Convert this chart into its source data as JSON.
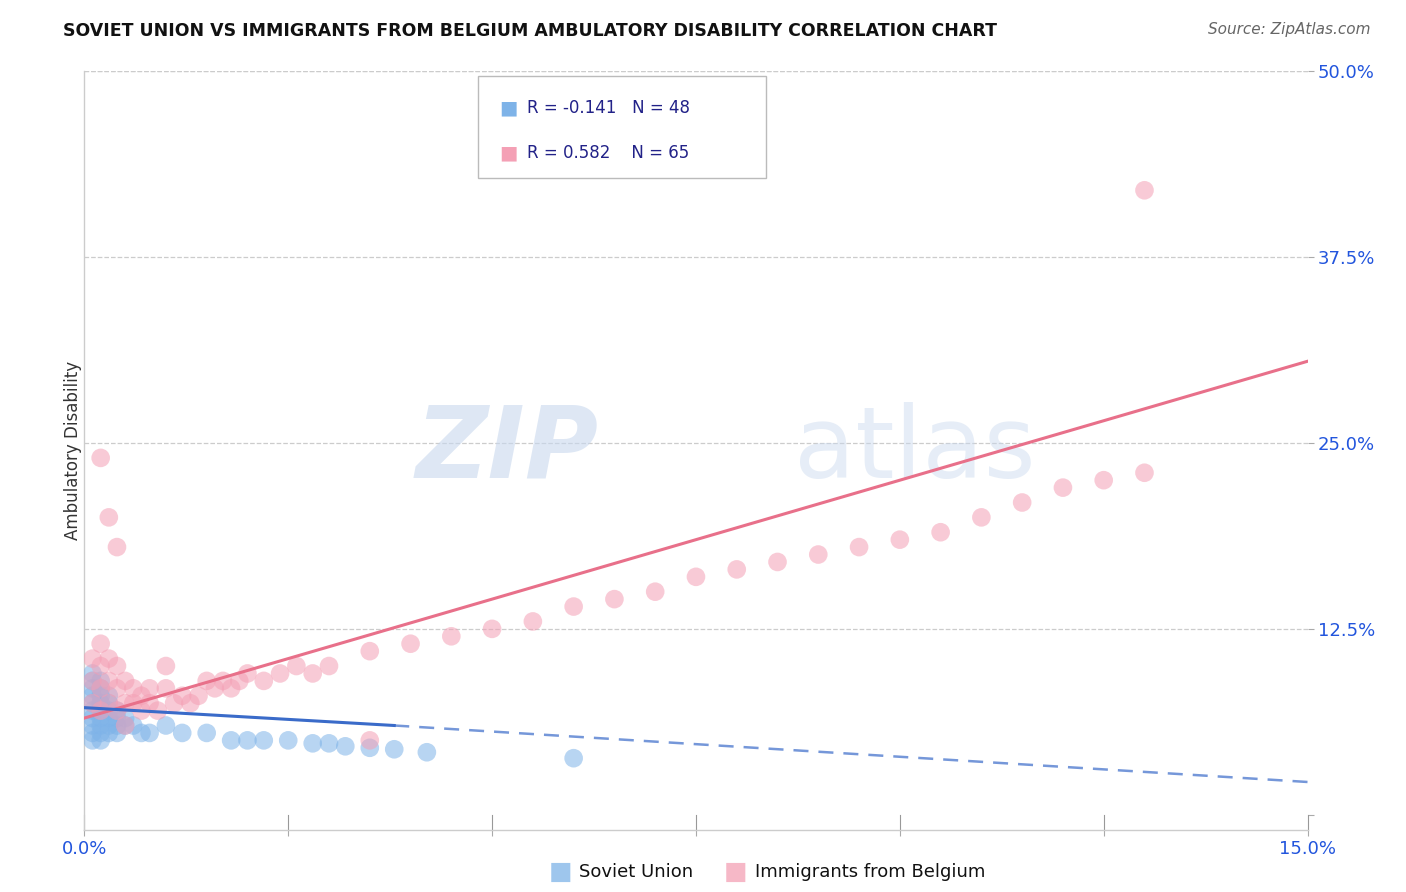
{
  "title": "SOVIET UNION VS IMMIGRANTS FROM BELGIUM AMBULATORY DISABILITY CORRELATION CHART",
  "source": "Source: ZipAtlas.com",
  "ylabel": "Ambulatory Disability",
  "xlim": [
    0.0,
    0.15
  ],
  "ylim": [
    -0.01,
    0.5
  ],
  "xticks": [
    0.0,
    0.025,
    0.05,
    0.075,
    0.1,
    0.125,
    0.15
  ],
  "yticks": [
    0.0,
    0.125,
    0.25,
    0.375,
    0.5
  ],
  "blue_color": "#7eb3e8",
  "pink_color": "#f4a0b5",
  "blue_line_color": "#3a6bc9",
  "pink_line_color": "#e8708a",
  "soviet_x": [
    0.001,
    0.001,
    0.001,
    0.001,
    0.001,
    0.001,
    0.001,
    0.001,
    0.001,
    0.001,
    0.002,
    0.002,
    0.002,
    0.002,
    0.002,
    0.002,
    0.002,
    0.002,
    0.002,
    0.003,
    0.003,
    0.003,
    0.003,
    0.003,
    0.003,
    0.004,
    0.004,
    0.004,
    0.004,
    0.005,
    0.005,
    0.006,
    0.007,
    0.008,
    0.01,
    0.012,
    0.015,
    0.018,
    0.02,
    0.022,
    0.025,
    0.028,
    0.03,
    0.032,
    0.035,
    0.038,
    0.042,
    0.06
  ],
  "soviet_y": [
    0.065,
    0.07,
    0.075,
    0.08,
    0.085,
    0.055,
    0.06,
    0.09,
    0.095,
    0.05,
    0.065,
    0.07,
    0.075,
    0.08,
    0.06,
    0.055,
    0.085,
    0.09,
    0.05,
    0.065,
    0.07,
    0.075,
    0.06,
    0.055,
    0.08,
    0.065,
    0.07,
    0.06,
    0.055,
    0.065,
    0.06,
    0.06,
    0.055,
    0.055,
    0.06,
    0.055,
    0.055,
    0.05,
    0.05,
    0.05,
    0.05,
    0.048,
    0.048,
    0.046,
    0.045,
    0.044,
    0.042,
    0.038
  ],
  "belgium_x": [
    0.001,
    0.001,
    0.001,
    0.002,
    0.002,
    0.002,
    0.002,
    0.003,
    0.003,
    0.003,
    0.004,
    0.004,
    0.004,
    0.005,
    0.005,
    0.005,
    0.006,
    0.006,
    0.007,
    0.007,
    0.008,
    0.008,
    0.009,
    0.01,
    0.01,
    0.011,
    0.012,
    0.013,
    0.014,
    0.015,
    0.016,
    0.017,
    0.018,
    0.019,
    0.02,
    0.022,
    0.024,
    0.026,
    0.028,
    0.03,
    0.035,
    0.035,
    0.04,
    0.045,
    0.05,
    0.055,
    0.06,
    0.065,
    0.07,
    0.075,
    0.08,
    0.085,
    0.09,
    0.095,
    0.1,
    0.105,
    0.11,
    0.115,
    0.12,
    0.125,
    0.13,
    0.002,
    0.003,
    0.004,
    0.13
  ],
  "belgium_y": [
    0.075,
    0.09,
    0.105,
    0.07,
    0.085,
    0.1,
    0.115,
    0.075,
    0.09,
    0.105,
    0.07,
    0.085,
    0.1,
    0.075,
    0.09,
    0.06,
    0.075,
    0.085,
    0.07,
    0.08,
    0.075,
    0.085,
    0.07,
    0.085,
    0.1,
    0.075,
    0.08,
    0.075,
    0.08,
    0.09,
    0.085,
    0.09,
    0.085,
    0.09,
    0.095,
    0.09,
    0.095,
    0.1,
    0.095,
    0.1,
    0.11,
    0.05,
    0.115,
    0.12,
    0.125,
    0.13,
    0.14,
    0.145,
    0.15,
    0.16,
    0.165,
    0.17,
    0.175,
    0.18,
    0.185,
    0.19,
    0.2,
    0.21,
    0.22,
    0.225,
    0.23,
    0.24,
    0.2,
    0.18,
    0.42
  ],
  "pink_line_x0": 0.0,
  "pink_line_y0": 0.065,
  "pink_line_x1": 0.15,
  "pink_line_y1": 0.305,
  "blue_line_solid_x0": 0.0,
  "blue_line_solid_y0": 0.072,
  "blue_line_solid_x1": 0.038,
  "blue_line_solid_y1": 0.06,
  "blue_line_dash_x0": 0.038,
  "blue_line_dash_y0": 0.06,
  "blue_line_dash_x1": 0.15,
  "blue_line_dash_y1": 0.022
}
